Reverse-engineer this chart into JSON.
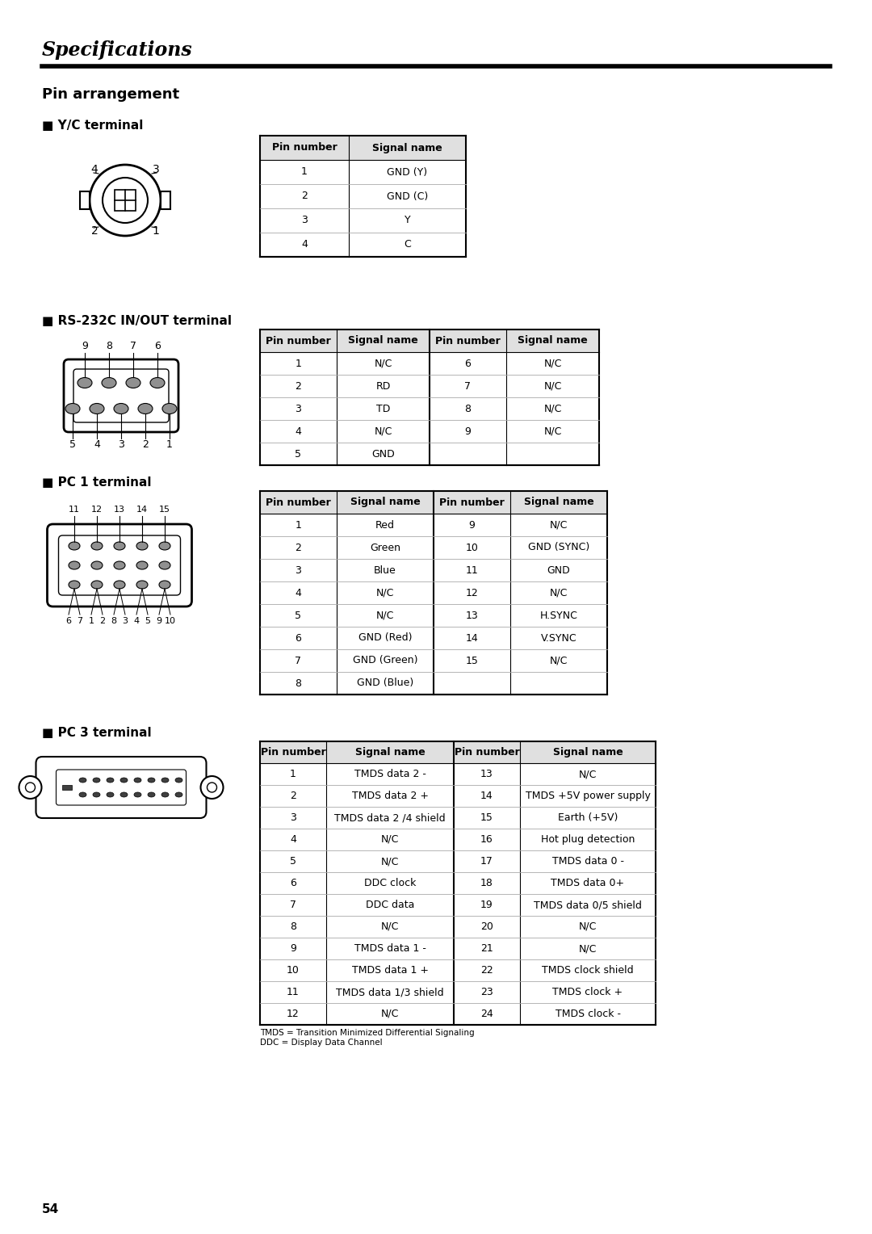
{
  "title": "Specifications",
  "page_number": "54",
  "background_color": "#ffffff",
  "sections": [
    {
      "title": "Pin arrangement",
      "subsections": [
        {
          "label": "Y/C terminal",
          "table_type": "2col",
          "headers": [
            "Pin number",
            "Signal name"
          ],
          "rows": [
            [
              "1",
              "GND (Y)"
            ],
            [
              "2",
              "GND (C)"
            ],
            [
              "3",
              "Y"
            ],
            [
              "4",
              "C"
            ]
          ]
        },
        {
          "label": "RS-232C IN/OUT terminal",
          "table_type": "4col",
          "headers": [
            "Pin number",
            "Signal name",
            "Pin number",
            "Signal name"
          ],
          "rows": [
            [
              "1",
              "N/C",
              "6",
              "N/C"
            ],
            [
              "2",
              "RD",
              "7",
              "N/C"
            ],
            [
              "3",
              "TD",
              "8",
              "N/C"
            ],
            [
              "4",
              "N/C",
              "9",
              "N/C"
            ],
            [
              "5",
              "GND",
              "",
              ""
            ]
          ]
        },
        {
          "label": "PC 1 terminal",
          "table_type": "4col",
          "headers": [
            "Pin number",
            "Signal name",
            "Pin number",
            "Signal name"
          ],
          "rows": [
            [
              "1",
              "Red",
              "9",
              "N/C"
            ],
            [
              "2",
              "Green",
              "10",
              "GND (SYNC)"
            ],
            [
              "3",
              "Blue",
              "11",
              "GND"
            ],
            [
              "4",
              "N/C",
              "12",
              "N/C"
            ],
            [
              "5",
              "N/C",
              "13",
              "H.SYNC"
            ],
            [
              "6",
              "GND (Red)",
              "14",
              "V.SYNC"
            ],
            [
              "7",
              "GND (Green)",
              "15",
              "N/C"
            ],
            [
              "8",
              "GND (Blue)",
              "",
              ""
            ]
          ]
        },
        {
          "label": "PC 3 terminal",
          "table_type": "4col",
          "headers": [
            "Pin number",
            "Signal name",
            "Pin number",
            "Signal name"
          ],
          "rows": [
            [
              "1",
              "TMDS data 2 -",
              "13",
              "N/C"
            ],
            [
              "2",
              "TMDS data 2 +",
              "14",
              "TMDS +5V power supply"
            ],
            [
              "3",
              "TMDS data 2 /4 shield",
              "15",
              "Earth (+5V)"
            ],
            [
              "4",
              "N/C",
              "16",
              "Hot plug detection"
            ],
            [
              "5",
              "N/C",
              "17",
              "TMDS data 0 -"
            ],
            [
              "6",
              "DDC clock",
              "18",
              "TMDS data 0+"
            ],
            [
              "7",
              "DDC data",
              "19",
              "TMDS data 0/5 shield"
            ],
            [
              "8",
              "N/C",
              "20",
              "N/C"
            ],
            [
              "9",
              "TMDS data 1 -",
              "21",
              "N/C"
            ],
            [
              "10",
              "TMDS data 1 +",
              "22",
              "TMDS clock shield"
            ],
            [
              "11",
              "TMDS data 1/3 shield",
              "23",
              "TMDS clock +"
            ],
            [
              "12",
              "N/C",
              "24",
              "TMDS clock -"
            ]
          ],
          "footnote": "TMDS = Transition Minimized Differential Signaling\nDDC = Display Data Channel"
        }
      ]
    }
  ]
}
